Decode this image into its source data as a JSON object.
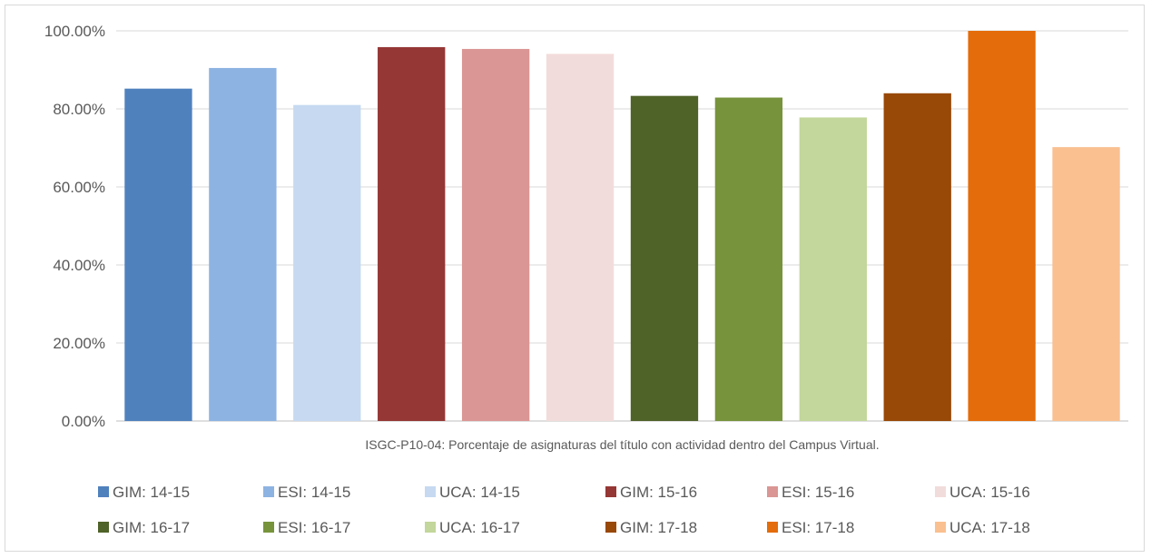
{
  "chart_data": {
    "type": "bar",
    "xlabel": "ISGC-P10-04: Porcentaje de asignaturas del título con actividad dentro del Campus Virtual.",
    "ylabel": "",
    "ylim": [
      0,
      100
    ],
    "yticks": [
      "0.00%",
      "20.00%",
      "40.00%",
      "60.00%",
      "80.00%",
      "100.00%"
    ],
    "grid": true,
    "legend_position": "bottom",
    "categories": [
      "GIM: 14-15",
      "ESI: 14-15",
      "UCA: 14-15",
      "GIM: 15-16",
      "ESI: 15-16",
      "UCA: 15-16",
      "GIM: 16-17",
      "ESI: 16-17",
      "UCA: 16-17",
      "GIM: 17-18",
      "ESI: 17-18",
      "UCA: 17-18"
    ],
    "values": [
      85.19,
      90.48,
      81.0,
      95.83,
      95.36,
      94.1,
      83.33,
      82.9,
      77.8,
      84.0,
      100.0,
      70.2
    ],
    "colors": [
      "#4f81bd",
      "#8db3e2",
      "#c6d9f1",
      "#953735",
      "#da9694",
      "#f2dcdb",
      "#4f6228",
      "#77933c",
      "#c3d69b",
      "#984807",
      "#e46c0a",
      "#fac090"
    ]
  }
}
